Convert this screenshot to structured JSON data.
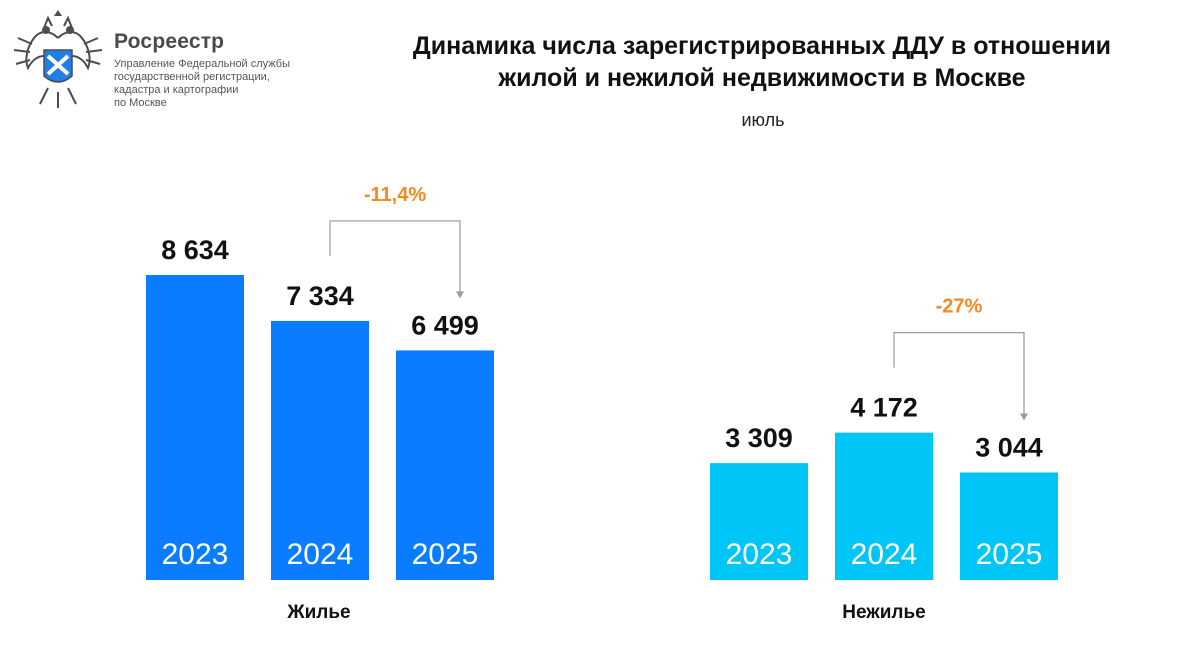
{
  "header": {
    "org_name": "Росреестр",
    "org_sub": [
      "Управление Федеральной службы",
      "государственной регистрации,",
      "кадастра и картографии",
      "по Москве"
    ],
    "title_lines": [
      "Динамика числа зарегистрированных ДДУ в отношении",
      "жилой и нежилой недвижимости в Москве"
    ],
    "subtitle": "июль"
  },
  "colors": {
    "residential": "#0a7cff",
    "nonresidential": "#00c6f7",
    "change": "#f5891f",
    "text": "#111111"
  },
  "chart_data": [
    {
      "type": "bar",
      "category_label": "Жилье",
      "categories": [
        "2023",
        "2024",
        "2025"
      ],
      "values": [
        8634,
        7334,
        6499
      ],
      "value_labels": [
        "8 634",
        "7 334",
        "6 499"
      ],
      "change_label": "-11,4%",
      "change_from": "2024",
      "change_to": "2025",
      "ylim": [
        0,
        10000
      ]
    },
    {
      "type": "bar",
      "category_label": "Нежилье",
      "categories": [
        "2023",
        "2024",
        "2025"
      ],
      "values": [
        3309,
        4172,
        3044
      ],
      "value_labels": [
        "3 309",
        "4 172",
        "3 044"
      ],
      "change_label": "-27%",
      "change_from": "2024",
      "change_to": "2025",
      "ylim": [
        0,
        10000
      ]
    }
  ]
}
